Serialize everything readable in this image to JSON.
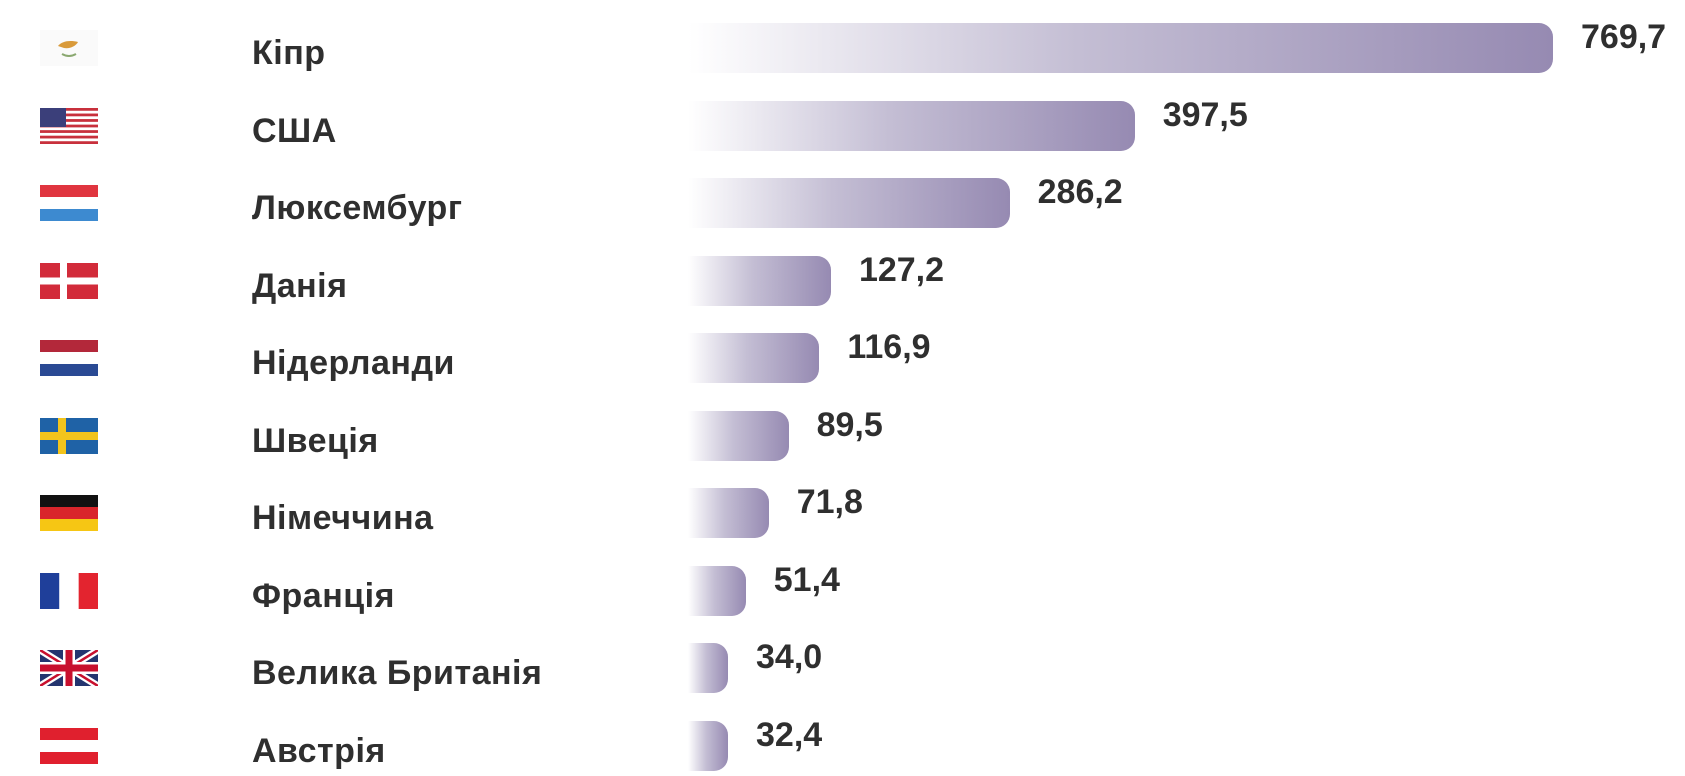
{
  "chart_data": {
    "type": "bar",
    "orientation": "horizontal",
    "title": "",
    "xlabel": "",
    "ylabel": "",
    "categories": [
      "Кіпр",
      "США",
      "Люксембург",
      "Данія",
      "Нідерланди",
      "Швеція",
      "Німеччина",
      "Франція",
      "Велика Британія",
      "Австрія"
    ],
    "values": [
      769.7,
      397.5,
      286.2,
      127.2,
      116.9,
      89.5,
      71.8,
      51.4,
      34.0,
      32.4
    ],
    "value_labels": [
      "769,7",
      "397,5",
      "286,2",
      "127,2",
      "116,9",
      "89,5",
      "71,8",
      "51,4",
      "34,0",
      "32,4"
    ],
    "flag_icons": [
      "cyprus-flag-icon",
      "usa-flag-icon",
      "luxembourg-flag-icon",
      "denmark-flag-icon",
      "netherlands-flag-icon",
      "sweden-flag-icon",
      "germany-flag-icon",
      "france-flag-icon",
      "uk-flag-icon",
      "austria-flag-icon"
    ],
    "xlim": [
      0,
      769.7
    ],
    "grid": false,
    "legend": false,
    "colors": {
      "bar_start": "#ffffff",
      "bar_end": "#968ab2",
      "text": "#2f2f2f"
    }
  }
}
